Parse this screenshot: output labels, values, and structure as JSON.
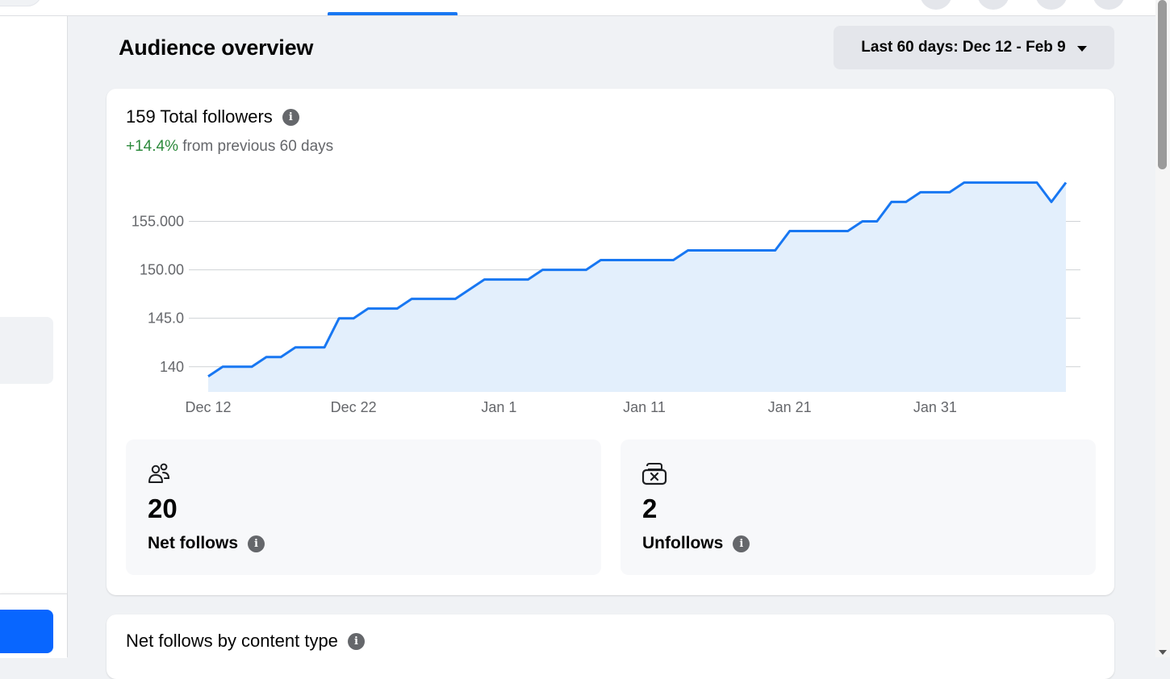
{
  "header": {
    "title": "Audience overview",
    "date_range_label": "Last 60 days: Dec 12 - Feb 9"
  },
  "followers_card": {
    "title": "159 Total followers",
    "change_value": "+14.4%",
    "change_text": " from previous 60 days",
    "info_glyph": "i"
  },
  "stats": {
    "net_follows": {
      "value": "20",
      "label": "Net follows",
      "icon": "people-icon"
    },
    "unfollows": {
      "value": "2",
      "label": "Unfollows",
      "icon": "unfollow-icon"
    }
  },
  "content_type_card": {
    "title": "Net follows by content type"
  },
  "colors": {
    "accent": "#1877f2",
    "positive": "#2c8a3c",
    "fill": "#e3effc"
  },
  "chart_data": {
    "type": "area",
    "x_tick_labels": [
      "Dec 12",
      "Dec 22",
      "Jan 1",
      "Jan 11",
      "Jan 21",
      "Jan 31"
    ],
    "y_tick_labels": [
      "155.000",
      "150.00",
      "145.0",
      "140"
    ],
    "y_ticks": [
      155,
      150,
      145,
      140
    ],
    "ylim": [
      137.4,
      158.7
    ],
    "grid": true,
    "x_start": "Dec 12",
    "x_end": "Feb 9",
    "series": [
      {
        "values": [
          [
            0,
            139
          ],
          [
            1,
            140
          ],
          [
            2,
            140
          ],
          [
            3,
            140
          ],
          [
            4,
            141
          ],
          [
            5,
            141
          ],
          [
            6,
            142
          ],
          [
            7,
            142
          ],
          [
            8,
            142
          ],
          [
            9,
            145
          ],
          [
            10,
            145
          ],
          [
            11,
            146
          ],
          [
            12,
            146
          ],
          [
            13,
            146
          ],
          [
            14,
            147
          ],
          [
            15,
            147
          ],
          [
            16,
            147
          ],
          [
            17,
            147
          ],
          [
            18,
            148
          ],
          [
            19,
            149
          ],
          [
            20,
            149
          ],
          [
            21,
            149
          ],
          [
            22,
            149
          ],
          [
            23,
            150
          ],
          [
            24,
            150
          ],
          [
            25,
            150
          ],
          [
            26,
            150
          ],
          [
            27,
            151
          ],
          [
            28,
            151
          ],
          [
            29,
            151
          ],
          [
            30,
            151
          ],
          [
            31,
            151
          ],
          [
            32,
            151
          ],
          [
            33,
            152
          ],
          [
            34,
            152
          ],
          [
            35,
            152
          ],
          [
            36,
            152
          ],
          [
            37,
            152
          ],
          [
            38,
            152
          ],
          [
            39,
            152
          ],
          [
            40,
            154
          ],
          [
            41,
            154
          ],
          [
            42,
            154
          ],
          [
            43,
            154
          ],
          [
            44,
            154
          ],
          [
            45,
            155
          ],
          [
            46,
            155
          ],
          [
            47,
            157
          ],
          [
            48,
            157
          ],
          [
            49,
            158
          ],
          [
            50,
            158
          ],
          [
            51,
            158
          ],
          [
            52,
            159
          ],
          [
            53,
            159
          ],
          [
            54,
            159
          ],
          [
            55,
            159
          ],
          [
            56,
            159
          ],
          [
            57,
            159
          ],
          [
            58,
            157
          ],
          [
            59,
            159
          ]
        ]
      }
    ]
  }
}
